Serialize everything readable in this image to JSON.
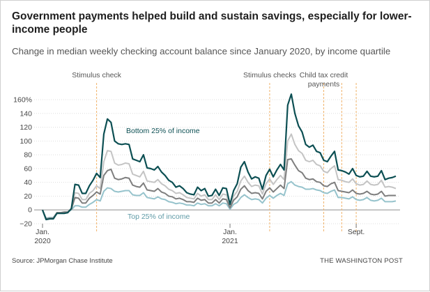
{
  "header": {
    "title": "Government payments helped build and sustain savings, especially for lower-income people",
    "subtitle": "Change in median weekly checking account balance since January 2020, by income quartile"
  },
  "footer": {
    "source": "Source: JPMorgan Chase Institute",
    "brand": "THE WASHINGTON POST"
  },
  "colors": {
    "bottom25": "#0c4f53",
    "second": "#7e7e7e",
    "third": "#c4c4c4",
    "top25": "#96c3cc",
    "annotation_line": "#f0b26a",
    "grid": "#dddddd"
  },
  "chart_data": {
    "type": "line",
    "x_start": "2020-01",
    "x_end": "2021-09",
    "ylim": [
      -20,
      160
    ],
    "yticks": [
      -20,
      0,
      20,
      40,
      60,
      80,
      100,
      120,
      140,
      160
    ],
    "ytick_labels": [
      "−20",
      "0",
      "20",
      "40",
      "60",
      "80",
      "100",
      "120",
      "140",
      "160%"
    ],
    "xticks": [
      {
        "label": "Jan.",
        "sub": "2020",
        "x": 0
      },
      {
        "label": "Jan.",
        "sub": "2021",
        "x": 52
      },
      {
        "label": "Sept.",
        "sub": "",
        "x": 87
      }
    ],
    "annotations": [
      {
        "label": "Stimulus check",
        "x": 15,
        "lines": [
          "Stimulus check"
        ]
      },
      {
        "label": "Stimulus checks",
        "x": 63,
        "lines": [
          "Stimulus checks"
        ]
      },
      {
        "label": "Child tax credit payments",
        "x": 78,
        "lines": [
          "Child tax credit",
          "payments"
        ]
      }
    ],
    "extra_event_lines": [
      83,
      87
    ],
    "series": [
      {
        "name": "Bottom 25% of income",
        "key": "bottom25",
        "labeled": true,
        "values": [
          0,
          -14,
          -13,
          -13,
          -5,
          -5,
          -5,
          -4,
          2,
          37,
          36,
          24,
          24,
          35,
          43,
          53,
          47,
          110,
          132,
          127,
          100,
          96,
          95,
          96,
          95,
          74,
          72,
          70,
          80,
          61,
          60,
          58,
          63,
          55,
          50,
          43,
          40,
          33,
          35,
          31,
          25,
          23,
          22,
          33,
          28,
          31,
          20,
          21,
          30,
          21,
          32,
          31,
          8,
          28,
          38,
          62,
          70,
          55,
          45,
          48,
          46,
          30,
          50,
          59,
          48,
          58,
          66,
          58,
          152,
          168,
          140,
          122,
          113,
          95,
          91,
          94,
          85,
          83,
          72,
          70,
          78,
          85,
          58,
          57,
          55,
          52,
          60,
          50,
          48,
          49,
          56,
          49,
          48,
          49,
          57,
          44,
          46,
          47,
          49
        ]
      },
      {
        "name": "",
        "key": "third",
        "labeled": false,
        "values": [
          0,
          -13,
          -12,
          -12,
          -4,
          -4,
          -3,
          -3,
          1,
          25,
          24,
          15,
          15,
          24,
          28,
          35,
          31,
          70,
          86,
          85,
          68,
          65,
          66,
          68,
          67,
          52,
          50,
          48,
          56,
          42,
          41,
          40,
          44,
          38,
          35,
          30,
          28,
          24,
          25,
          22,
          18,
          17,
          16,
          24,
          20,
          22,
          15,
          15,
          22,
          15,
          23,
          22,
          5,
          20,
          27,
          42,
          49,
          40,
          34,
          36,
          35,
          23,
          38,
          45,
          37,
          44,
          50,
          44,
          100,
          110,
          95,
          86,
          82,
          72,
          70,
          72,
          66,
          64,
          56,
          54,
          60,
          64,
          44,
          43,
          41,
          40,
          45,
          38,
          36,
          37,
          42,
          37,
          36,
          37,
          43,
          33,
          34,
          33,
          31
        ]
      },
      {
        "name": "",
        "key": "second",
        "labeled": false,
        "values": [
          0,
          -13,
          -12,
          -12,
          -4,
          -4,
          -3,
          -3,
          1,
          18,
          17,
          10,
          10,
          17,
          21,
          26,
          23,
          50,
          57,
          59,
          46,
          44,
          45,
          47,
          46,
          36,
          34,
          33,
          39,
          29,
          28,
          27,
          31,
          26,
          24,
          20,
          19,
          16,
          17,
          15,
          12,
          12,
          11,
          17,
          14,
          15,
          10,
          10,
          15,
          10,
          16,
          15,
          3,
          14,
          19,
          30,
          35,
          28,
          24,
          25,
          24,
          16,
          27,
          32,
          26,
          31,
          36,
          31,
          73,
          74,
          65,
          57,
          54,
          46,
          44,
          45,
          41,
          40,
          35,
          34,
          38,
          40,
          28,
          27,
          26,
          25,
          29,
          24,
          23,
          24,
          27,
          23,
          22,
          23,
          27,
          20,
          21,
          21,
          21
        ]
      },
      {
        "name": "Top 25% of income",
        "key": "top25",
        "labeled": true,
        "values": [
          0,
          -12,
          -11,
          -11,
          -4,
          -4,
          -3,
          -3,
          0,
          6,
          6,
          4,
          4,
          8,
          11,
          15,
          13,
          27,
          32,
          31,
          27,
          26,
          27,
          28,
          28,
          22,
          21,
          21,
          25,
          18,
          17,
          16,
          19,
          16,
          15,
          12,
          11,
          9,
          10,
          9,
          7,
          7,
          6,
          10,
          8,
          9,
          6,
          6,
          9,
          6,
          10,
          9,
          1,
          8,
          11,
          18,
          22,
          18,
          15,
          16,
          15,
          10,
          17,
          21,
          17,
          21,
          24,
          21,
          38,
          41,
          36,
          34,
          33,
          30,
          30,
          31,
          29,
          28,
          25,
          24,
          27,
          29,
          18,
          18,
          17,
          16,
          19,
          15,
          14,
          15,
          18,
          14,
          13,
          14,
          17,
          12,
          12,
          12,
          13
        ]
      }
    ]
  }
}
